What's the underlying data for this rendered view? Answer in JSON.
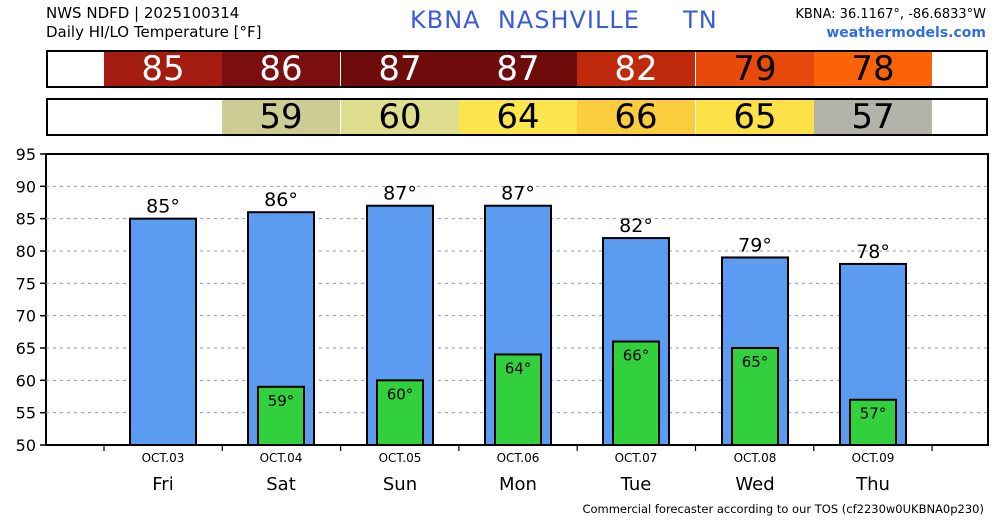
{
  "header": {
    "source": "NWS NDFD | 2025100314",
    "subtitle": "Daily HI/LO Temperature [°F]",
    "station_title": "KBNA  NASHVILLE     TN",
    "coords": "KBNA: 36.1167°, -86.6833°W",
    "site": "weathermodels.com"
  },
  "footer": "Commercial forecaster according to our TOS (cf2230w0UKBNA0p230)",
  "hi_strip": [
    {
      "value": "85",
      "color": "#a31c0f",
      "text_color": "#ffffff"
    },
    {
      "value": "86",
      "color": "#7b0e0e",
      "text_color": "#ffffff"
    },
    {
      "value": "87",
      "color": "#6e0b0b",
      "text_color": "#ffffff"
    },
    {
      "value": "87",
      "color": "#6e0b0b",
      "text_color": "#ffffff"
    },
    {
      "value": "82",
      "color": "#c02a0c",
      "text_color": "#ffffff"
    },
    {
      "value": "79",
      "color": "#e84a0c",
      "text_color": "#000000"
    },
    {
      "value": "78",
      "color": "#fb6309",
      "text_color": "#000000"
    }
  ],
  "lo_strip": [
    {
      "value": "",
      "color": "#ffffff",
      "text_color": "#000000"
    },
    {
      "value": "59",
      "color": "#cccc94",
      "text_color": "#000000"
    },
    {
      "value": "60",
      "color": "#dede8e",
      "text_color": "#000000"
    },
    {
      "value": "64",
      "color": "#fbe64e",
      "text_color": "#000000"
    },
    {
      "value": "66",
      "color": "#fbcd3c",
      "text_color": "#000000"
    },
    {
      "value": "65",
      "color": "#fbe048",
      "text_color": "#000000"
    },
    {
      "value": "57",
      "color": "#b3b3aa",
      "text_color": "#000000"
    }
  ],
  "chart_data": {
    "type": "bar",
    "categories": [
      "Fri",
      "Sat",
      "Sun",
      "Mon",
      "Tue",
      "Wed",
      "Thu"
    ],
    "dates": [
      "OCT.03",
      "OCT.04",
      "OCT.05",
      "OCT.06",
      "OCT.07",
      "OCT.08",
      "OCT.09"
    ],
    "series": [
      {
        "values": [
          85,
          86,
          87,
          87,
          82,
          79,
          78
        ],
        "color": "#5b9cf0",
        "labels": [
          "85°",
          "86°",
          "87°",
          "87°",
          "82°",
          "79°",
          "78°"
        ]
      },
      {
        "values": [
          null,
          59,
          60,
          64,
          66,
          65,
          57
        ],
        "color": "#33d03d",
        "labels": [
          "",
          "59°",
          "60°",
          "64°",
          "66°",
          "65°",
          "57°"
        ]
      }
    ],
    "ylim": [
      50,
      95
    ],
    "yticks": [
      "95",
      "90",
      "85",
      "80",
      "75",
      "70",
      "65",
      "60",
      "55",
      "50"
    ],
    "grid": true
  }
}
